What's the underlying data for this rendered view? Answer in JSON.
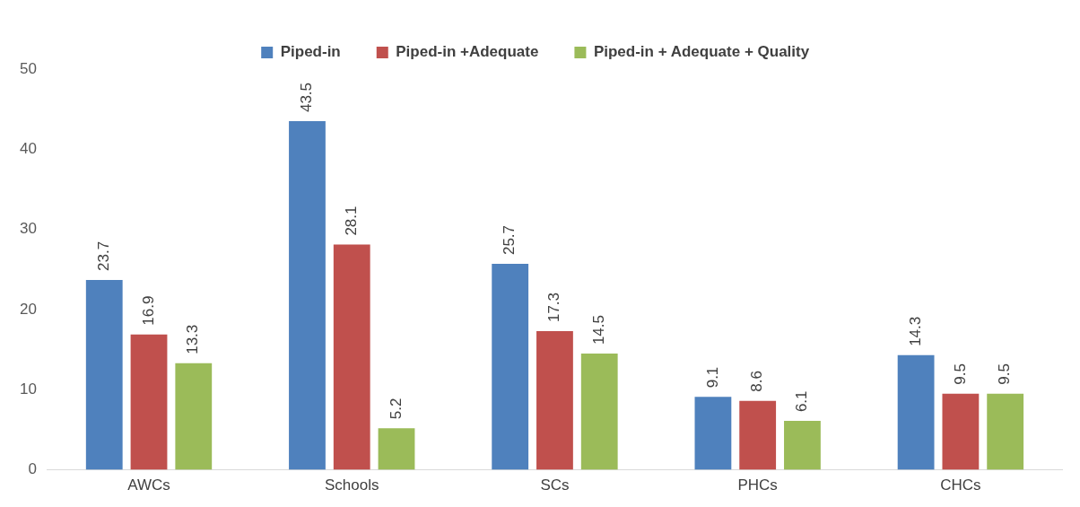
{
  "chart_data": {
    "type": "bar",
    "categories": [
      "AWCs",
      "Schools",
      "SCs",
      "PHCs",
      "CHCs"
    ],
    "series": [
      {
        "name": "Piped-in",
        "color": "#4f81bd",
        "values": [
          23.7,
          43.5,
          25.7,
          9.1,
          14.3
        ]
      },
      {
        "name": "Piped-in +Adequate",
        "color": "#c0504d",
        "values": [
          16.9,
          28.1,
          17.3,
          8.6,
          9.5
        ]
      },
      {
        "name": "Piped-in + Adequate + Quality",
        "color": "#9bbb59",
        "values": [
          13.3,
          5.2,
          14.5,
          6.1,
          9.5
        ]
      }
    ],
    "ylim": [
      0,
      50
    ],
    "yticks": [
      0,
      10,
      20,
      30,
      40,
      50
    ],
    "grid": false,
    "legend": "top",
    "data_labels": true
  }
}
